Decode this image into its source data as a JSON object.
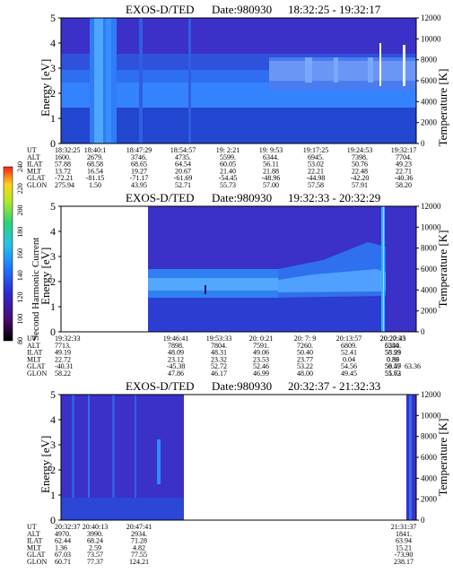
{
  "chart_data": [
    {
      "type": "heatmap",
      "title": "EXOS-D/TED",
      "date_label": "Date:980930",
      "time_range": "18:32:25 - 19:32:17",
      "ylabel": "Energy [eV]",
      "y2label": "Temperature [K]",
      "ylim": [
        0,
        5
      ],
      "y_ticks": [
        "0",
        "1",
        "2",
        "3",
        "4",
        "5"
      ],
      "y2lim": [
        0,
        12000
      ],
      "y2_ticks": [
        "0",
        "2000",
        "4000",
        "6000",
        "8000",
        "10000",
        "12000"
      ],
      "orbit_table": {
        "row_labels": [
          "UT",
          "ALT",
          "ILAT",
          "MLT",
          "GLAT",
          "GLON"
        ],
        "columns": [
          [
            "18:32:25",
            "1600.",
            "57.88",
            "13.72",
            "-72.21",
            "275.94"
          ],
          [
            "18:40:1",
            "2679.",
            "68.58",
            "16.54",
            "-81.15",
            "1.50"
          ],
          [
            "18:47:29",
            "3746.",
            "68.65",
            "19.27",
            "-71.17",
            "43.95"
          ],
          [
            "18:54:57",
            "4735.",
            "64.54",
            "20.67",
            "-61.69",
            "52.71"
          ],
          [
            "19: 2:21",
            "5599.",
            "60.05",
            "21.40",
            "-54.45",
            "55.73"
          ],
          [
            "19: 9:53",
            "6344.",
            "56.11",
            "21.88",
            "-48.96",
            "57.00"
          ],
          [
            "19:17:25",
            "6945.",
            "53.02",
            "22.21",
            "-44.98",
            "57.58"
          ],
          [
            "19:24:53",
            "7398.",
            "50.76",
            "22.48",
            "-42.20",
            "57.91"
          ],
          [
            "19:32:17",
            "7704.",
            "49.23",
            "22.71",
            "-40.36",
            "58.20"
          ]
        ]
      }
    },
    {
      "type": "heatmap",
      "title": "EXOS-D/TED",
      "date_label": "Date:980930",
      "time_range": "19:32:33 - 20:32:29",
      "ylabel": "Energy [eV]",
      "y2label": "Temperature [K]",
      "ylim": [
        0,
        5
      ],
      "y_ticks": [
        "0",
        "1",
        "2",
        "3",
        "4",
        "5"
      ],
      "y2lim": [
        0,
        12000
      ],
      "y2_ticks": [
        "0",
        "2000",
        "4000",
        "6000",
        "8000",
        "10000",
        "12000"
      ],
      "orbit_table": {
        "row_labels": [
          "UT",
          "ALT",
          "ILAT",
          "MLT",
          "GLAT",
          "GLON"
        ],
        "columns": [
          [
            "19:32:33",
            "7713.",
            "49.19",
            "22.72",
            "-40.31",
            "58.22"
          ],
          [
            "19:46:41",
            "7898.",
            "48.09",
            "23.12",
            "-45.38",
            "47.86"
          ],
          [
            "19:53:33",
            "7804.",
            "48.31",
            "23.32",
            "52.72",
            "46.17"
          ],
          [
            "20: 0:21",
            "7591.",
            "49.06",
            "23.53",
            "52.46",
            "46.99"
          ],
          [
            "20: 7: 9",
            "7260.",
            "50.40",
            "23.77",
            "53.22",
            "48.00"
          ],
          [
            "20:13:57",
            "6809.",
            "52.41",
            "0.04",
            "54.56",
            "49.45"
          ],
          [
            "20:20:45",
            "6240.",
            "55.23",
            "0.39",
            "56.59",
            "51.72"
          ],
          [
            "20:27:33",
            "5554.",
            "58.99",
            "0.86",
            "59.47",
            "55.63"
          ],
          [
            "",
            "",
            "",
            "",
            "63.36",
            ""
          ]
        ]
      }
    },
    {
      "type": "heatmap",
      "title": "EXOS-D/TED",
      "date_label": "Date:980930",
      "time_range": "20:32:37 - 21:32:33",
      "ylabel": "Energy [eV]",
      "y2label": "Temperature [K]",
      "ylim": [
        0,
        5
      ],
      "y_ticks": [
        "0",
        "1",
        "2",
        "3",
        "4",
        "5"
      ],
      "y2lim": [
        0,
        12000
      ],
      "y2_ticks": [
        "0",
        "2000",
        "4000",
        "6000",
        "8000",
        "10000",
        "12000"
      ],
      "orbit_table": {
        "row_labels": [
          "UT",
          "ALT",
          "ILAT",
          "MLT",
          "GLAT",
          "GLON"
        ],
        "columns": [
          [
            "20:32:37",
            "4970.",
            "62.44",
            "1.36",
            "67.03",
            "60.71"
          ],
          [
            "20:40:13",
            "3990.",
            "68.24",
            "2.59",
            "73.57",
            "77.37"
          ],
          [
            "20:47:41",
            "2934.",
            "71.28",
            "4.82",
            "77.55",
            "124.21"
          ],
          [
            "21:31:37",
            "1841.",
            "63.94",
            "15.21",
            "-73.90",
            "238.17"
          ]
        ]
      }
    }
  ],
  "colorbar": {
    "label": "Second Harmonic Current",
    "ticks": [
      "80",
      "100",
      "120",
      "140",
      "160",
      "180",
      "200",
      "220",
      "240"
    ],
    "range": [
      80,
      240
    ],
    "colors": [
      "#000000",
      "#4a0b6e",
      "#2c2cd4",
      "#1e78ff",
      "#29c0e8",
      "#2cd27a",
      "#b4e82a",
      "#ffd21e",
      "#ff1e1e"
    ]
  }
}
